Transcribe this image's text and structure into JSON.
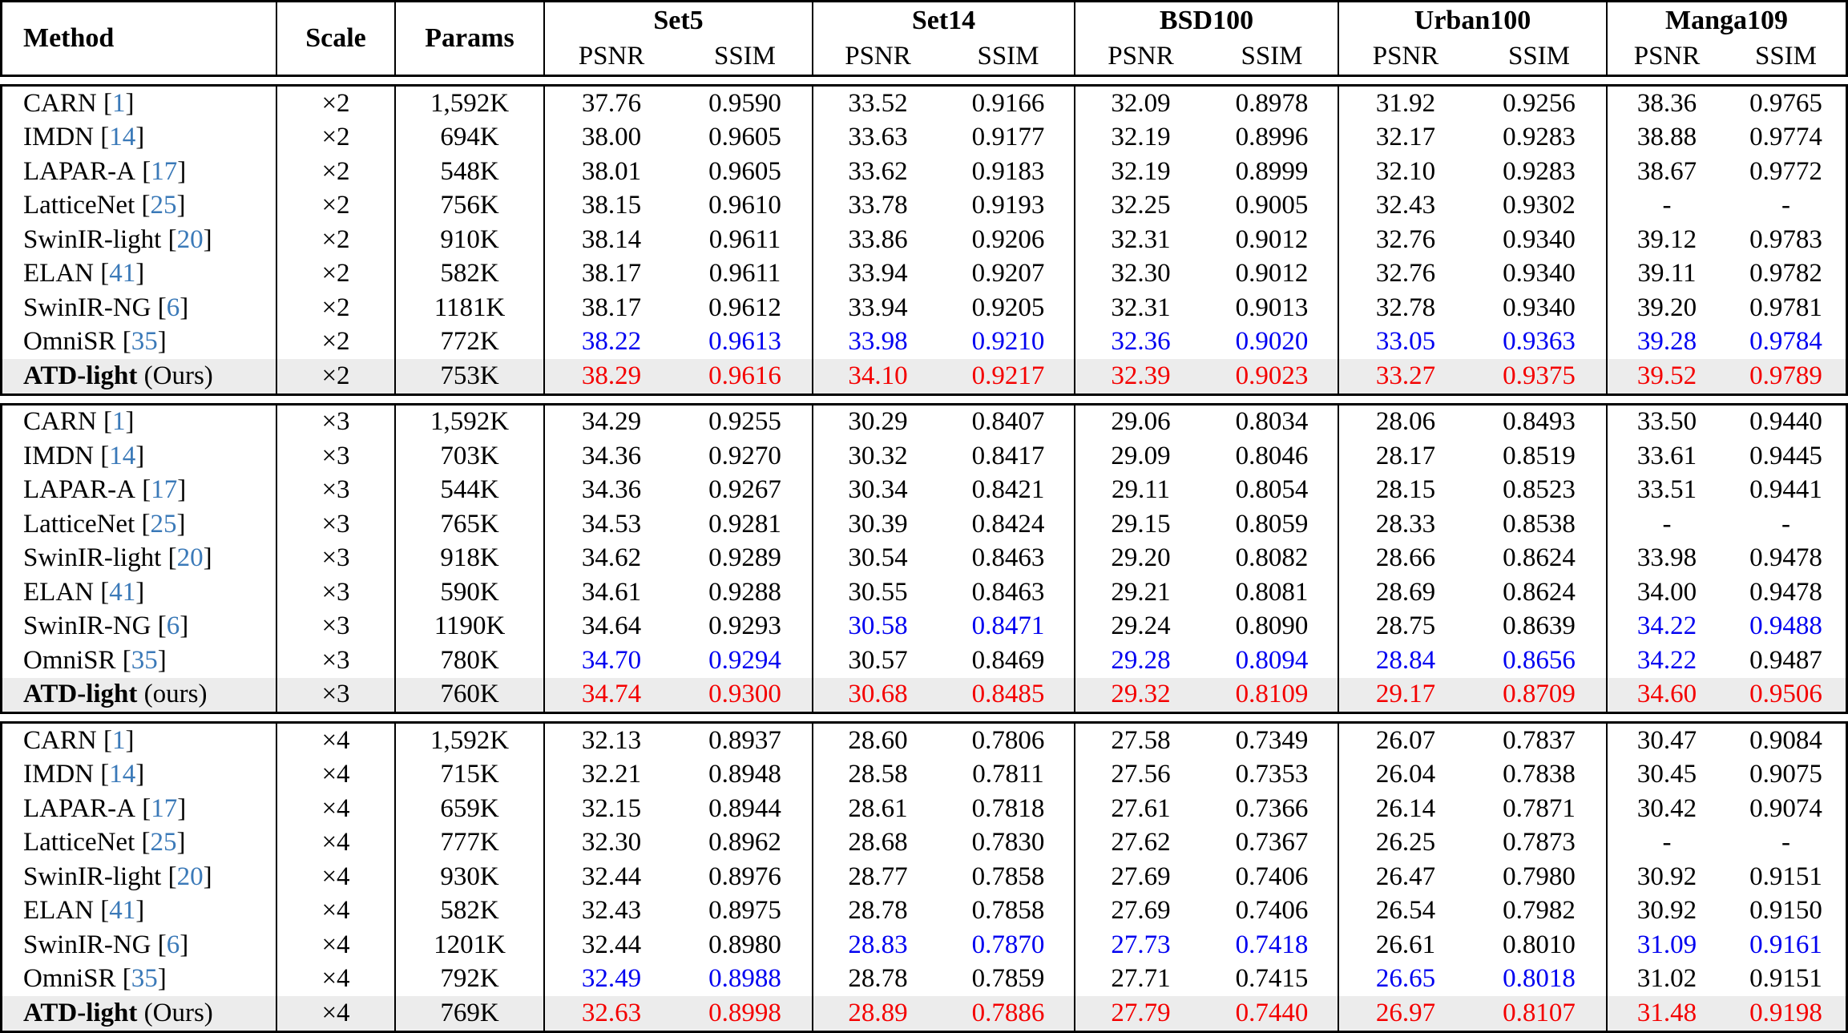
{
  "colors": {
    "citation_blue": "#3a79b8",
    "second_best_blue": "#0000f0",
    "best_red": "#f40000",
    "ours_row_bg": "#ececec",
    "border_black": "#000000"
  },
  "table": {
    "headers": {
      "method": "Method",
      "scale": "Scale",
      "params": "Params",
      "psnr": "PSNR",
      "ssim": "SSIM",
      "datasets": [
        "Set5",
        "Set14",
        "BSD100",
        "Urban100",
        "Manga109"
      ]
    },
    "groups": [
      {
        "scale": "×2",
        "rows": [
          {
            "name": "CARN",
            "cite": "1",
            "scale": "×2",
            "params": "1,592K",
            "ours": false,
            "vals": [
              "37.76",
              "0.9590",
              "33.52",
              "0.9166",
              "32.09",
              "0.8978",
              "31.92",
              "0.9256",
              "38.36",
              "0.9765"
            ],
            "c": [
              "n",
              "n",
              "n",
              "n",
              "n",
              "n",
              "n",
              "n",
              "n",
              "n"
            ]
          },
          {
            "name": "IMDN",
            "cite": "14",
            "scale": "×2",
            "params": "694K",
            "ours": false,
            "vals": [
              "38.00",
              "0.9605",
              "33.63",
              "0.9177",
              "32.19",
              "0.8996",
              "32.17",
              "0.9283",
              "38.88",
              "0.9774"
            ],
            "c": [
              "n",
              "n",
              "n",
              "n",
              "n",
              "n",
              "n",
              "n",
              "n",
              "n"
            ]
          },
          {
            "name": "LAPAR-A",
            "cite": "17",
            "scale": "×2",
            "params": "548K",
            "ours": false,
            "vals": [
              "38.01",
              "0.9605",
              "33.62",
              "0.9183",
              "32.19",
              "0.8999",
              "32.10",
              "0.9283",
              "38.67",
              "0.9772"
            ],
            "c": [
              "n",
              "n",
              "n",
              "n",
              "n",
              "n",
              "n",
              "n",
              "n",
              "n"
            ]
          },
          {
            "name": "LatticeNet",
            "cite": "25",
            "scale": "×2",
            "params": "756K",
            "ours": false,
            "vals": [
              "38.15",
              "0.9610",
              "33.78",
              "0.9193",
              "32.25",
              "0.9005",
              "32.43",
              "0.9302",
              "-",
              "-"
            ],
            "c": [
              "n",
              "n",
              "n",
              "n",
              "n",
              "n",
              "n",
              "n",
              "n",
              "n"
            ]
          },
          {
            "name": "SwinIR-light",
            "cite": "20",
            "scale": "×2",
            "params": "910K",
            "ours": false,
            "vals": [
              "38.14",
              "0.9611",
              "33.86",
              "0.9206",
              "32.31",
              "0.9012",
              "32.76",
              "0.9340",
              "39.12",
              "0.9783"
            ],
            "c": [
              "n",
              "n",
              "n",
              "n",
              "n",
              "n",
              "n",
              "n",
              "n",
              "n"
            ]
          },
          {
            "name": "ELAN",
            "cite": "41",
            "scale": "×2",
            "params": "582K",
            "ours": false,
            "vals": [
              "38.17",
              "0.9611",
              "33.94",
              "0.9207",
              "32.30",
              "0.9012",
              "32.76",
              "0.9340",
              "39.11",
              "0.9782"
            ],
            "c": [
              "n",
              "n",
              "n",
              "n",
              "n",
              "n",
              "n",
              "n",
              "n",
              "n"
            ]
          },
          {
            "name": "SwinIR-NG",
            "cite": "6",
            "scale": "×2",
            "params": "1181K",
            "ours": false,
            "vals": [
              "38.17",
              "0.9612",
              "33.94",
              "0.9205",
              "32.31",
              "0.9013",
              "32.78",
              "0.9340",
              "39.20",
              "0.9781"
            ],
            "c": [
              "n",
              "n",
              "n",
              "n",
              "n",
              "n",
              "n",
              "n",
              "n",
              "n"
            ]
          },
          {
            "name": "OmniSR",
            "cite": "35",
            "scale": "×2",
            "params": "772K",
            "ours": false,
            "vals": [
              "38.22",
              "0.9613",
              "33.98",
              "0.9210",
              "32.36",
              "0.9020",
              "33.05",
              "0.9363",
              "39.28",
              "0.9784"
            ],
            "c": [
              "b",
              "b",
              "b",
              "b",
              "b",
              "b",
              "b",
              "b",
              "b",
              "b"
            ]
          },
          {
            "name": "ATD-light",
            "suffix": "(Ours)",
            "scale": "×2",
            "params": "753K",
            "ours": true,
            "vals": [
              "38.29",
              "0.9616",
              "34.10",
              "0.9217",
              "32.39",
              "0.9023",
              "33.27",
              "0.9375",
              "39.52",
              "0.9789"
            ],
            "c": [
              "r",
              "r",
              "r",
              "r",
              "r",
              "r",
              "r",
              "r",
              "r",
              "r"
            ]
          }
        ]
      },
      {
        "scale": "×3",
        "rows": [
          {
            "name": "CARN",
            "cite": "1",
            "scale": "×3",
            "params": "1,592K",
            "ours": false,
            "vals": [
              "34.29",
              "0.9255",
              "30.29",
              "0.8407",
              "29.06",
              "0.8034",
              "28.06",
              "0.8493",
              "33.50",
              "0.9440"
            ],
            "c": [
              "n",
              "n",
              "n",
              "n",
              "n",
              "n",
              "n",
              "n",
              "n",
              "n"
            ]
          },
          {
            "name": "IMDN",
            "cite": "14",
            "scale": "×3",
            "params": "703K",
            "ours": false,
            "vals": [
              "34.36",
              "0.9270",
              "30.32",
              "0.8417",
              "29.09",
              "0.8046",
              "28.17",
              "0.8519",
              "33.61",
              "0.9445"
            ],
            "c": [
              "n",
              "n",
              "n",
              "n",
              "n",
              "n",
              "n",
              "n",
              "n",
              "n"
            ]
          },
          {
            "name": "LAPAR-A",
            "cite": "17",
            "scale": "×3",
            "params": "544K",
            "ours": false,
            "vals": [
              "34.36",
              "0.9267",
              "30.34",
              "0.8421",
              "29.11",
              "0.8054",
              "28.15",
              "0.8523",
              "33.51",
              "0.9441"
            ],
            "c": [
              "n",
              "n",
              "n",
              "n",
              "n",
              "n",
              "n",
              "n",
              "n",
              "n"
            ]
          },
          {
            "name": "LatticeNet",
            "cite": "25",
            "scale": "×3",
            "params": "765K",
            "ours": false,
            "vals": [
              "34.53",
              "0.9281",
              "30.39",
              "0.8424",
              "29.15",
              "0.8059",
              "28.33",
              "0.8538",
              "-",
              "-"
            ],
            "c": [
              "n",
              "n",
              "n",
              "n",
              "n",
              "n",
              "n",
              "n",
              "n",
              "n"
            ]
          },
          {
            "name": "SwinIR-light",
            "cite": "20",
            "scale": "×3",
            "params": "918K",
            "ours": false,
            "vals": [
              "34.62",
              "0.9289",
              "30.54",
              "0.8463",
              "29.20",
              "0.8082",
              "28.66",
              "0.8624",
              "33.98",
              "0.9478"
            ],
            "c": [
              "n",
              "n",
              "n",
              "n",
              "n",
              "n",
              "n",
              "n",
              "n",
              "n"
            ]
          },
          {
            "name": "ELAN",
            "cite": "41",
            "scale": "×3",
            "params": "590K",
            "ours": false,
            "vals": [
              "34.61",
              "0.9288",
              "30.55",
              "0.8463",
              "29.21",
              "0.8081",
              "28.69",
              "0.8624",
              "34.00",
              "0.9478"
            ],
            "c": [
              "n",
              "n",
              "n",
              "n",
              "n",
              "n",
              "n",
              "n",
              "n",
              "n"
            ]
          },
          {
            "name": "SwinIR-NG",
            "cite": "6",
            "scale": "×3",
            "params": "1190K",
            "ours": false,
            "vals": [
              "34.64",
              "0.9293",
              "30.58",
              "0.8471",
              "29.24",
              "0.8090",
              "28.75",
              "0.8639",
              "34.22",
              "0.9488"
            ],
            "c": [
              "n",
              "n",
              "b",
              "b",
              "n",
              "n",
              "n",
              "n",
              "b",
              "b"
            ]
          },
          {
            "name": "OmniSR",
            "cite": "35",
            "scale": "×3",
            "params": "780K",
            "ours": false,
            "vals": [
              "34.70",
              "0.9294",
              "30.57",
              "0.8469",
              "29.28",
              "0.8094",
              "28.84",
              "0.8656",
              "34.22",
              "0.9487"
            ],
            "c": [
              "b",
              "b",
              "n",
              "n",
              "b",
              "b",
              "b",
              "b",
              "b",
              "n"
            ]
          },
          {
            "name": "ATD-light",
            "suffix": "(ours)",
            "scale": "×3",
            "params": "760K",
            "ours": true,
            "vals": [
              "34.74",
              "0.9300",
              "30.68",
              "0.8485",
              "29.32",
              "0.8109",
              "29.17",
              "0.8709",
              "34.60",
              "0.9506"
            ],
            "c": [
              "r",
              "r",
              "r",
              "r",
              "r",
              "r",
              "r",
              "r",
              "r",
              "r"
            ]
          }
        ]
      },
      {
        "scale": "×4",
        "rows": [
          {
            "name": "CARN",
            "cite": "1",
            "scale": "×4",
            "params": "1,592K",
            "ours": false,
            "vals": [
              "32.13",
              "0.8937",
              "28.60",
              "0.7806",
              "27.58",
              "0.7349",
              "26.07",
              "0.7837",
              "30.47",
              "0.9084"
            ],
            "c": [
              "n",
              "n",
              "n",
              "n",
              "n",
              "n",
              "n",
              "n",
              "n",
              "n"
            ]
          },
          {
            "name": "IMDN",
            "cite": "14",
            "scale": "×4",
            "params": "715K",
            "ours": false,
            "vals": [
              "32.21",
              "0.8948",
              "28.58",
              "0.7811",
              "27.56",
              "0.7353",
              "26.04",
              "0.7838",
              "30.45",
              "0.9075"
            ],
            "c": [
              "n",
              "n",
              "n",
              "n",
              "n",
              "n",
              "n",
              "n",
              "n",
              "n"
            ]
          },
          {
            "name": "LAPAR-A",
            "cite": "17",
            "scale": "×4",
            "params": "659K",
            "ours": false,
            "vals": [
              "32.15",
              "0.8944",
              "28.61",
              "0.7818",
              "27.61",
              "0.7366",
              "26.14",
              "0.7871",
              "30.42",
              "0.9074"
            ],
            "c": [
              "n",
              "n",
              "n",
              "n",
              "n",
              "n",
              "n",
              "n",
              "n",
              "n"
            ]
          },
          {
            "name": "LatticeNet",
            "cite": "25",
            "scale": "×4",
            "params": "777K",
            "ours": false,
            "vals": [
              "32.30",
              "0.8962",
              "28.68",
              "0.7830",
              "27.62",
              "0.7367",
              "26.25",
              "0.7873",
              "-",
              "-"
            ],
            "c": [
              "n",
              "n",
              "n",
              "n",
              "n",
              "n",
              "n",
              "n",
              "n",
              "n"
            ]
          },
          {
            "name": "SwinIR-light",
            "cite": "20",
            "scale": "×4",
            "params": "930K",
            "ours": false,
            "vals": [
              "32.44",
              "0.8976",
              "28.77",
              "0.7858",
              "27.69",
              "0.7406",
              "26.47",
              "0.7980",
              "30.92",
              "0.9151"
            ],
            "c": [
              "n",
              "n",
              "n",
              "n",
              "n",
              "n",
              "n",
              "n",
              "n",
              "n"
            ]
          },
          {
            "name": "ELAN",
            "cite": "41",
            "scale": "×4",
            "params": "582K",
            "ours": false,
            "vals": [
              "32.43",
              "0.8975",
              "28.78",
              "0.7858",
              "27.69",
              "0.7406",
              "26.54",
              "0.7982",
              "30.92",
              "0.9150"
            ],
            "c": [
              "n",
              "n",
              "n",
              "n",
              "n",
              "n",
              "n",
              "n",
              "n",
              "n"
            ]
          },
          {
            "name": "SwinIR-NG",
            "cite": "6",
            "scale": "×4",
            "params": "1201K",
            "ours": false,
            "vals": [
              "32.44",
              "0.8980",
              "28.83",
              "0.7870",
              "27.73",
              "0.7418",
              "26.61",
              "0.8010",
              "31.09",
              "0.9161"
            ],
            "c": [
              "n",
              "n",
              "b",
              "b",
              "b",
              "b",
              "n",
              "n",
              "b",
              "b"
            ]
          },
          {
            "name": "OmniSR",
            "cite": "35",
            "scale": "×4",
            "params": "792K",
            "ours": false,
            "vals": [
              "32.49",
              "0.8988",
              "28.78",
              "0.7859",
              "27.71",
              "0.7415",
              "26.65",
              "0.8018",
              "31.02",
              "0.9151"
            ],
            "c": [
              "b",
              "b",
              "n",
              "n",
              "n",
              "n",
              "b",
              "b",
              "n",
              "n"
            ]
          },
          {
            "name": "ATD-light",
            "suffix": "(Ours)",
            "scale": "×4",
            "params": "769K",
            "ours": true,
            "vals": [
              "32.63",
              "0.8998",
              "28.89",
              "0.7886",
              "27.79",
              "0.7440",
              "26.97",
              "0.8107",
              "31.48",
              "0.9198"
            ],
            "c": [
              "r",
              "r",
              "r",
              "r",
              "r",
              "r",
              "r",
              "r",
              "r",
              "r"
            ]
          }
        ]
      }
    ]
  }
}
